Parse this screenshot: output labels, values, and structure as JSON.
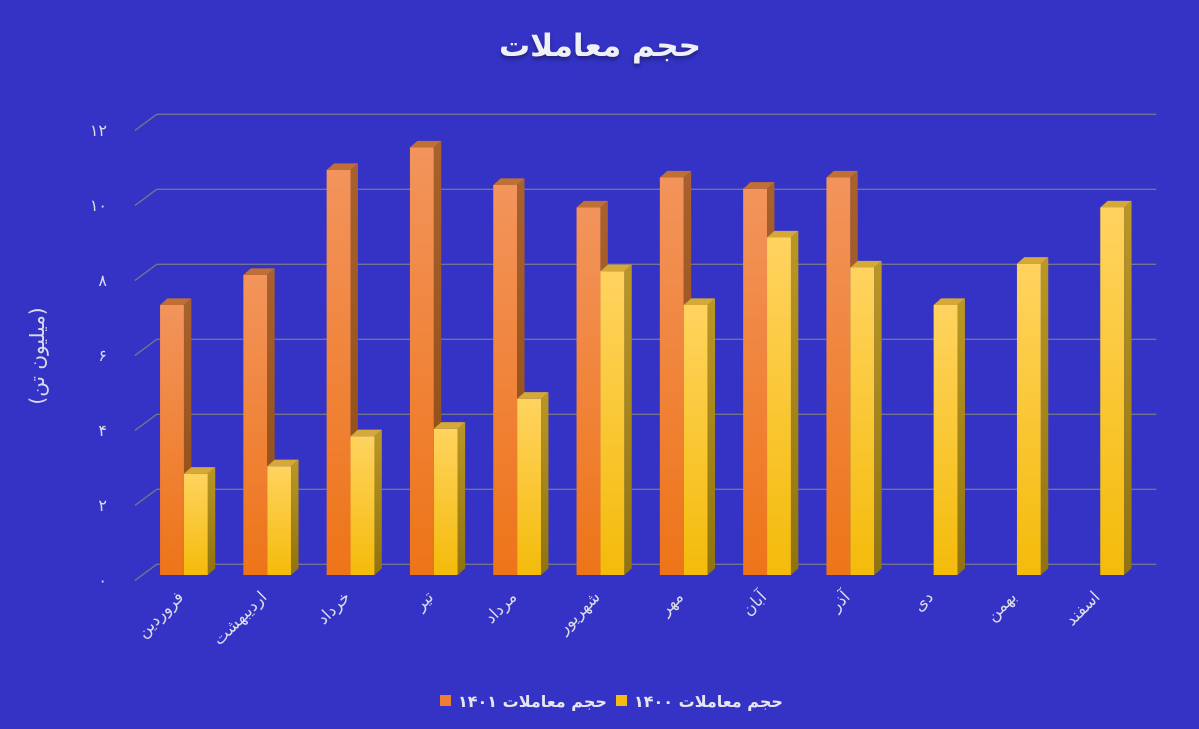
{
  "page": {
    "background_color": "#3433c6"
  },
  "chart_data": {
    "type": "bar",
    "variant": "3d-column",
    "title": "حجم معاملات",
    "xlabel": "",
    "ylabel": "(میلیون تن)",
    "categories": [
      "فروردین",
      "اردیبهشت",
      "خرداد",
      "تیر",
      "مرداد",
      "شهریور",
      "مهر",
      "آبان",
      "آذر",
      "دی",
      "بهمن",
      "اسفند"
    ],
    "series": [
      {
        "name": "حجم معاملات ۱۴۰۱",
        "color": "#ed7d31",
        "values": [
          7.2,
          8.0,
          10.8,
          11.4,
          10.4,
          9.8,
          10.6,
          10.3,
          10.6,
          null,
          null,
          null
        ]
      },
      {
        "name": "حجم معاملات ۱۴۰۰",
        "color": "#f5bd11",
        "values": [
          2.7,
          2.9,
          3.7,
          3.9,
          4.7,
          8.1,
          7.2,
          9.0,
          8.2,
          7.2,
          8.3,
          9.8
        ]
      }
    ],
    "ylim": [
      0,
      12
    ],
    "ytick_interval": 2,
    "ytick_labels": [
      "۰",
      "۲",
      "۴",
      "۶",
      "۸",
      "۱۰",
      "۱۲"
    ],
    "grid": true,
    "legend_position": "bottom-center",
    "style": {
      "background": "#3433c6",
      "gridline_color": "#72738f",
      "text_color": "#dcdce8",
      "title_color": "#efeff6",
      "orange_front_top": "#f2945c",
      "orange_front_bottom": "#ee7418",
      "orange_side_top": "#a9612e",
      "orange_side_bottom": "#8a4a14",
      "orange_top_face": "#c06f35",
      "yellow_front_top": "#ffd35f",
      "yellow_front_bottom": "#f4bb0a",
      "yellow_side_top": "#bb9724",
      "yellow_side_bottom": "#8f730e",
      "yellow_top_face": "#d5a937"
    }
  }
}
